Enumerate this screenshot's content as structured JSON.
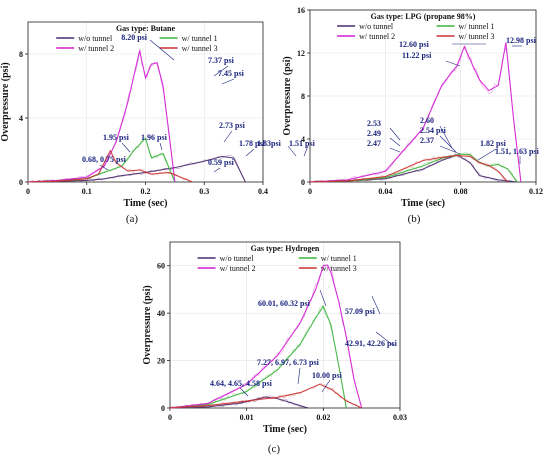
{
  "colors": {
    "wo": "#4b2a6e",
    "t1": "#3cb43c",
    "t2": "#d21ed2",
    "t3": "#c83232",
    "ann": "#1a237e"
  },
  "chart_data": [
    {
      "type": "line",
      "caption": "(a)",
      "title": "Gas type: Butane",
      "xlabel": "Time (sec)",
      "ylabel": "Overpressure (psi)",
      "xlim": [
        0,
        0.4
      ],
      "ylim": [
        0,
        10
      ],
      "xticks": [
        "0",
        "0.1",
        "0.2",
        "0.3",
        "0.4"
      ],
      "yticks": [
        "0",
        "4",
        "8"
      ],
      "grid": true,
      "legend": "top",
      "series": [
        {
          "name": "w/o tunnel",
          "x": [
            0,
            0.05,
            0.1,
            0.13,
            0.16,
            0.2,
            0.25,
            0.3,
            0.33,
            0.35,
            0.37
          ],
          "y": [
            0,
            0.05,
            0.1,
            0.2,
            0.4,
            0.6,
            0.9,
            1.3,
            1.6,
            1.5,
            0
          ]
        },
        {
          "name": "w/ tunnel 1",
          "x": [
            0,
            0.05,
            0.1,
            0.13,
            0.16,
            0.18,
            0.2,
            0.21,
            0.23,
            0.25
          ],
          "y": [
            0,
            0.1,
            0.2,
            0.6,
            1.0,
            1.96,
            2.73,
            1.5,
            1.78,
            0
          ]
        },
        {
          "name": "w/ tunnel 2",
          "x": [
            0,
            0.05,
            0.1,
            0.13,
            0.15,
            0.17,
            0.19,
            0.2,
            0.21,
            0.22,
            0.23,
            0.24,
            0.25
          ],
          "y": [
            0,
            0.1,
            0.3,
            1.0,
            2.5,
            5.0,
            8.2,
            6.5,
            7.37,
            7.45,
            6.0,
            3.0,
            0
          ]
        },
        {
          "name": "w/ tunnel 3",
          "x": [
            0,
            0.05,
            0.1,
            0.12,
            0.14,
            0.15,
            0.17,
            0.19,
            0.21,
            0.24,
            0.26,
            0.28
          ],
          "y": [
            0,
            0.05,
            0.2,
            0.5,
            1.95,
            1.2,
            0.68,
            0.75,
            0.5,
            0.59,
            0.3,
            0
          ]
        }
      ],
      "annotations": [
        "8.20 psi",
        "7.37 psi",
        "7.45 psi",
        "2.73 psi",
        "1.95 psi",
        "1.96 psi",
        "1.78 psi",
        "0.68, 0.75 psi",
        "0.59 psi",
        "1.83psi",
        "1.51 psi"
      ]
    },
    {
      "type": "line",
      "caption": "(b)",
      "title": "Gas type: LPG (propane 98%)",
      "xlabel": "Time (sec)",
      "ylabel": "Overpressure (psi)",
      "xlim": [
        0,
        0.12
      ],
      "ylim": [
        0,
        16
      ],
      "xticks": [
        "0",
        "0.04",
        "0.08",
        "0.12"
      ],
      "yticks": [
        "0",
        "4",
        "8",
        "12",
        "16"
      ],
      "grid": true,
      "legend": "top",
      "series": [
        {
          "name": "w/o tunnel",
          "x": [
            0,
            0.02,
            0.04,
            0.06,
            0.07,
            0.078,
            0.085,
            0.09,
            0.1,
            0.11
          ],
          "y": [
            0,
            0.1,
            0.3,
            1.2,
            2.0,
            2.53,
            1.8,
            0.6,
            0.2,
            0
          ]
        },
        {
          "name": "w/ tunnel 1",
          "x": [
            0,
            0.02,
            0.04,
            0.06,
            0.07,
            0.08,
            0.085,
            0.09,
            0.095,
            0.1,
            0.105,
            0.11
          ],
          "y": [
            0,
            0.1,
            0.4,
            1.5,
            2.2,
            2.6,
            2.54,
            1.82,
            1.5,
            1.63,
            1.2,
            0
          ]
        },
        {
          "name": "w/ tunnel 2",
          "x": [
            0,
            0.02,
            0.04,
            0.06,
            0.07,
            0.078,
            0.082,
            0.086,
            0.09,
            0.095,
            0.1,
            0.104,
            0.108,
            0.112
          ],
          "y": [
            0,
            0.2,
            1.0,
            5.0,
            9.0,
            10.8,
            12.6,
            11.0,
            9.5,
            8.5,
            9.0,
            12.98,
            6.0,
            0
          ]
        },
        {
          "name": "w/ tunnel 3",
          "x": [
            0,
            0.02,
            0.04,
            0.06,
            0.07,
            0.078,
            0.085,
            0.09,
            0.095,
            0.1,
            0.105
          ],
          "y": [
            0,
            0.1,
            0.5,
            2.0,
            2.3,
            2.47,
            2.37,
            1.8,
            1.51,
            1.0,
            0
          ]
        }
      ],
      "annotations": [
        "12.60 psi",
        "11.22 psi",
        "12.98 psi",
        "2.53",
        "2.49",
        "2.47",
        "2.60",
        "2.54 psi",
        "2.37",
        "1.82 psi",
        "1.51, 1.63 psi"
      ]
    },
    {
      "type": "line",
      "caption": "(c)",
      "title": "Gas type: Hydrogen",
      "xlabel": "Time (sec)",
      "ylabel": "Overpressure (psi)",
      "xlim": [
        0,
        0.03
      ],
      "ylim": [
        0,
        70
      ],
      "xticks": [
        "0",
        "0.01",
        "0.02",
        "0.03"
      ],
      "yticks": [
        "0",
        "20",
        "40",
        "60"
      ],
      "grid": true,
      "legend": "top",
      "series": [
        {
          "name": "w/o tunnel",
          "x": [
            0,
            0.005,
            0.009,
            0.011,
            0.0125,
            0.014,
            0.016,
            0.018
          ],
          "y": [
            0,
            0.5,
            2.0,
            3.5,
            4.64,
            4.0,
            2.0,
            0
          ]
        },
        {
          "name": "w/ tunnel 1",
          "x": [
            0,
            0.005,
            0.01,
            0.014,
            0.017,
            0.019,
            0.02,
            0.021,
            0.022,
            0.023
          ],
          "y": [
            0,
            1.5,
            7.0,
            16,
            27,
            38,
            42.91,
            35,
            18,
            0
          ]
        },
        {
          "name": "w/ tunnel 2",
          "x": [
            0,
            0.005,
            0.01,
            0.014,
            0.017,
            0.019,
            0.02,
            0.0205,
            0.021,
            0.022,
            0.023,
            0.024,
            0.025
          ],
          "y": [
            0,
            2.0,
            10,
            22,
            36,
            50,
            60.01,
            60.32,
            57.09,
            45,
            30,
            12,
            0
          ]
        },
        {
          "name": "w/ tunnel 3",
          "x": [
            0,
            0.005,
            0.01,
            0.014,
            0.017,
            0.0195,
            0.021,
            0.023,
            0.025
          ],
          "y": [
            0,
            1.0,
            3.0,
            4.5,
            6.5,
            10.0,
            8.0,
            3.0,
            0
          ]
        }
      ],
      "annotations": [
        "60.01, 60.32 psi",
        "57.09 psi",
        "42.91, 42.26 psi",
        "7.27, 6.97, 6.73 psi",
        "10.00 psi",
        "4.64, 4.65, 4.58 psi"
      ]
    }
  ]
}
